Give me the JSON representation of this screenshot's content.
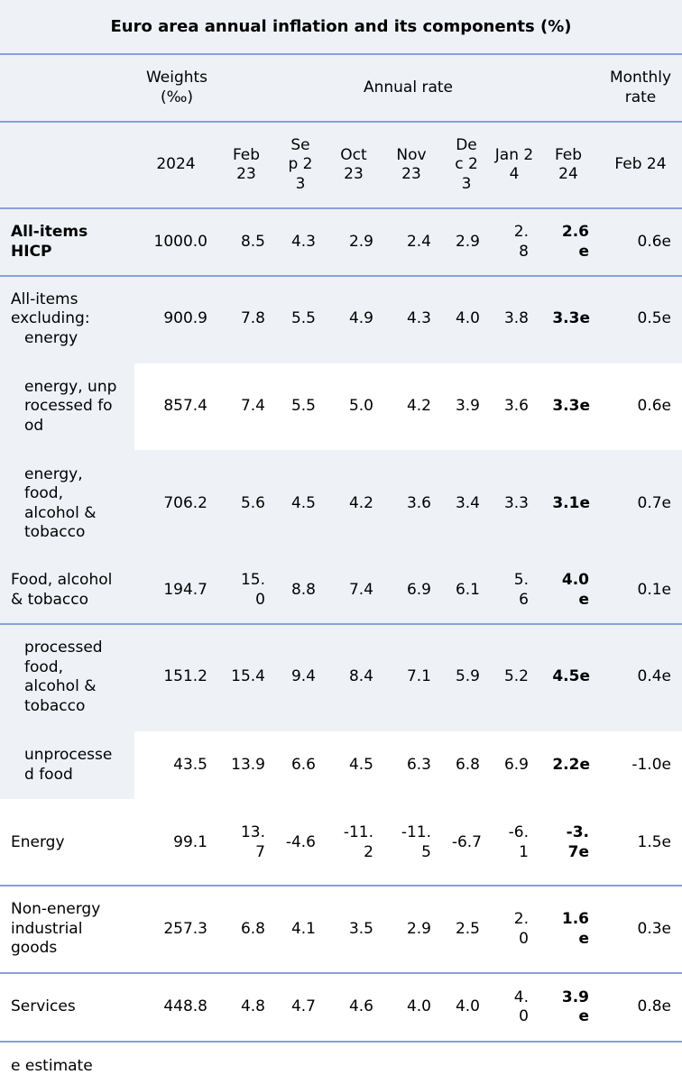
{
  "title": "Euro area annual inflation and its components (%)",
  "header": {
    "weights": "Weights (‰)",
    "annual_rate": "Annual rate",
    "monthly_rate": "Monthly rate",
    "columns": [
      "2024",
      "Feb 23",
      "Sep 23",
      "Oct 23",
      "Nov 23",
      "Dec 23",
      "Jan 24",
      "Feb 24",
      "Feb 24"
    ]
  },
  "rows": [
    {
      "label": "All-items HICP",
      "bold": true,
      "values": [
        "1000.0",
        "8.5",
        "4.3",
        "2.9",
        "2.4",
        "2.9",
        "2.8",
        "2.6e",
        "0.6e"
      ]
    },
    {
      "label": "All-items excluding:",
      "sublabel": "energy",
      "values": [
        "900.9",
        "7.8",
        "5.5",
        "4.9",
        "4.3",
        "4.0",
        "3.8",
        "3.3e",
        "0.5e"
      ]
    },
    {
      "label": "energy, unprocessed food",
      "values": [
        "857.4",
        "7.4",
        "5.5",
        "5.0",
        "4.2",
        "3.9",
        "3.6",
        "3.3e",
        "0.6e"
      ]
    },
    {
      "label": "energy, food, alcohol & tobacco",
      "values": [
        "706.2",
        "5.6",
        "4.5",
        "4.2",
        "3.6",
        "3.4",
        "3.3",
        "3.1e",
        "0.7e"
      ]
    },
    {
      "label": "Food, alcohol & tobacco",
      "values": [
        "194.7",
        "15.0",
        "8.8",
        "7.4",
        "6.9",
        "6.1",
        "5.6",
        "4.0e",
        "0.1e"
      ]
    },
    {
      "label": "processed food, alcohol & tobacco",
      "values": [
        "151.2",
        "15.4",
        "9.4",
        "8.4",
        "7.1",
        "5.9",
        "5.2",
        "4.5e",
        "0.4e"
      ]
    },
    {
      "label": "unprocessed food",
      "values": [
        "43.5",
        "13.9",
        "6.6",
        "4.5",
        "6.3",
        "6.8",
        "6.9",
        "2.2e",
        "-1.0e"
      ]
    },
    {
      "label": "Energy",
      "values": [
        "99.1",
        "13.7",
        "-4.6",
        "-11.2",
        "-11.5",
        "-6.7",
        "-6.1",
        "-3.7e",
        "1.5e"
      ]
    },
    {
      "label": "Non-energy industrial goods",
      "values": [
        "257.3",
        "6.8",
        "4.1",
        "3.5",
        "2.9",
        "2.5",
        "2.0",
        "1.6e",
        "0.3e"
      ]
    },
    {
      "label": "Services",
      "values": [
        "448.8",
        "4.8",
        "4.7",
        "4.6",
        "4.0",
        "4.0",
        "4.0",
        "3.9e",
        "0.8e"
      ]
    }
  ],
  "footnote": "e estimate"
}
